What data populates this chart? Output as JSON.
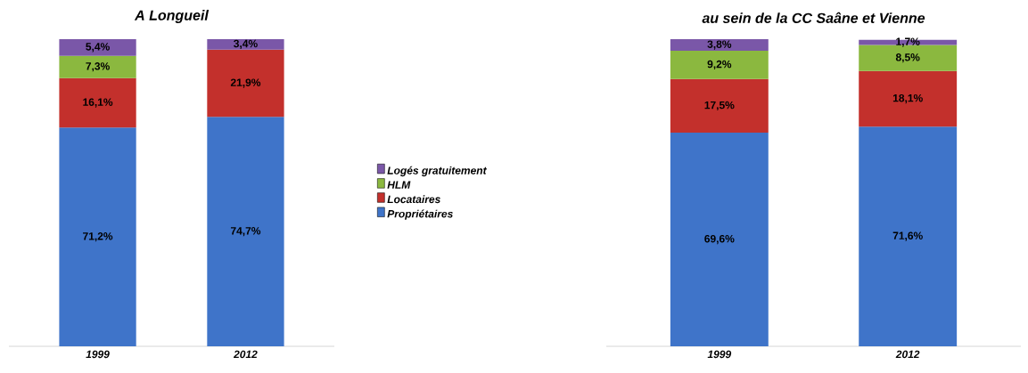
{
  "chart_data": [
    {
      "type": "bar",
      "title": "A Longueil",
      "stacked": true,
      "categories": [
        "1999",
        "2012"
      ],
      "legend": "right",
      "series": [
        {
          "name": "Propriétaires",
          "color": "#3f74c9",
          "values": [
            71.2,
            74.7
          ],
          "value_labels": [
            "71,2%",
            "74,7%"
          ]
        },
        {
          "name": "Locataires",
          "color": "#c3302c",
          "values": [
            16.1,
            21.9
          ],
          "value_labels": [
            "16,1%",
            "21,9%"
          ]
        },
        {
          "name": "HLM",
          "color": "#8bb83f",
          "values": [
            7.3,
            null
          ],
          "value_labels": [
            "7,3%",
            null
          ]
        },
        {
          "name": "Logés gratuitement",
          "color": "#7a57a8",
          "values": [
            5.4,
            3.4
          ],
          "value_labels": [
            "5,4%",
            "3,4%"
          ]
        }
      ]
    },
    {
      "type": "bar",
      "title": "au sein de la CC Saâne et Vienne",
      "stacked": true,
      "categories": [
        "1999",
        "2012"
      ],
      "series": [
        {
          "color": "#3f74c9",
          "values": [
            69.6,
            71.6
          ],
          "value_labels": [
            "69,6%",
            "71,6%"
          ]
        },
        {
          "color": "#c3302c",
          "values": [
            17.5,
            18.1
          ],
          "value_labels": [
            "17,5%",
            "18,1%"
          ]
        },
        {
          "color": "#8bb83f",
          "values": [
            9.2,
            8.5
          ],
          "value_labels": [
            "9,2%",
            "8,5%"
          ]
        },
        {
          "color": "#7a57a8",
          "values": [
            3.8,
            1.7
          ],
          "value_labels": [
            "3,8%",
            "1,7%"
          ]
        }
      ]
    }
  ]
}
